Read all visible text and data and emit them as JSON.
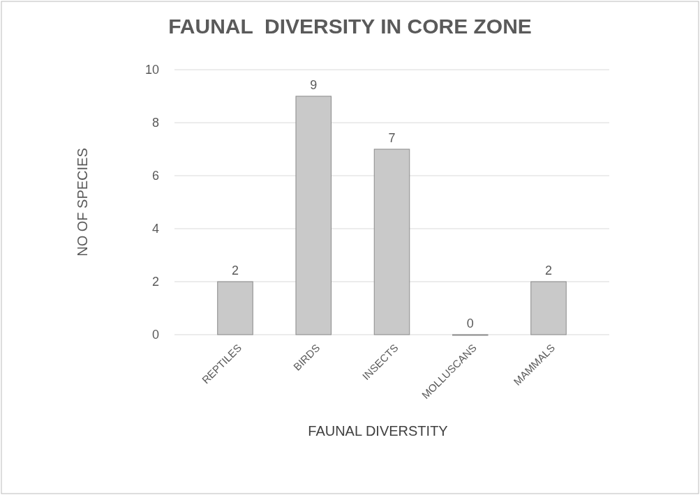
{
  "chart_data": {
    "type": "bar",
    "title": "FAUNAL  DIVERSITY IN CORE ZONE",
    "xlabel": "FAUNAL DIVERSTITY",
    "ylabel": "NO OF SPECIES",
    "categories": [
      "REPTILES",
      "BIRDS",
      "INSECTS",
      "MOLLUSCANS",
      "MAMMALS"
    ],
    "values": [
      2,
      9,
      7,
      0,
      2
    ],
    "color": "#c9c9c9",
    "ylim": [
      0,
      10
    ],
    "yticks": [
      0,
      2,
      4,
      6,
      8,
      10
    ],
    "grid": "y",
    "data_labels": true
  }
}
